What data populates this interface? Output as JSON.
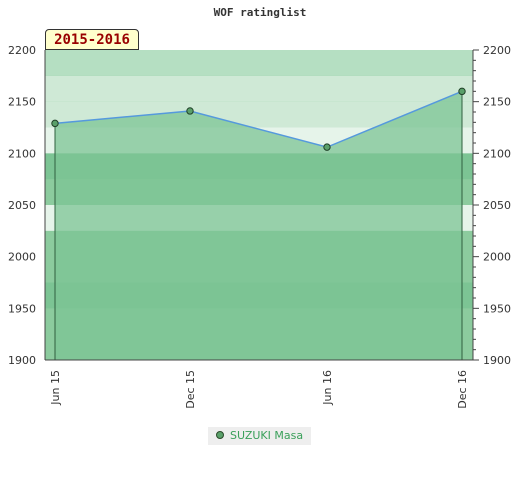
{
  "chart_data": {
    "type": "line",
    "title": "WOF ratinglist",
    "period_label": "2015-2016",
    "xlabel": "",
    "ylabel": "",
    "ylim": [
      1900,
      2200
    ],
    "y_ticks": [
      1900,
      1950,
      2000,
      2050,
      2100,
      2150,
      2200
    ],
    "x_ticks": [
      "Jun 15",
      "Dec 15",
      "Jun 16",
      "Dec 16"
    ],
    "series": [
      {
        "name": "SUZUKI Masa",
        "points": [
          {
            "x": "Jun 15",
            "y": 2129
          },
          {
            "x": "Dec 15",
            "y": 2141
          },
          {
            "x": "Jun 16",
            "y": 2106
          },
          {
            "x": "Dec 16",
            "y": 2160
          }
        ]
      }
    ],
    "legend": "bottom-center",
    "grid": true,
    "colors": {
      "band_dark": "#7cc494",
      "band_mid": "#8ccb9e",
      "band_light": "#9bd1aa",
      "band_pale": "#b5dfc2",
      "band_palest": "#cfe9d6",
      "band_white": "#e6f4ea",
      "line": "#5599dd",
      "marker": "#5aa06a",
      "area": "#7cc494"
    }
  }
}
